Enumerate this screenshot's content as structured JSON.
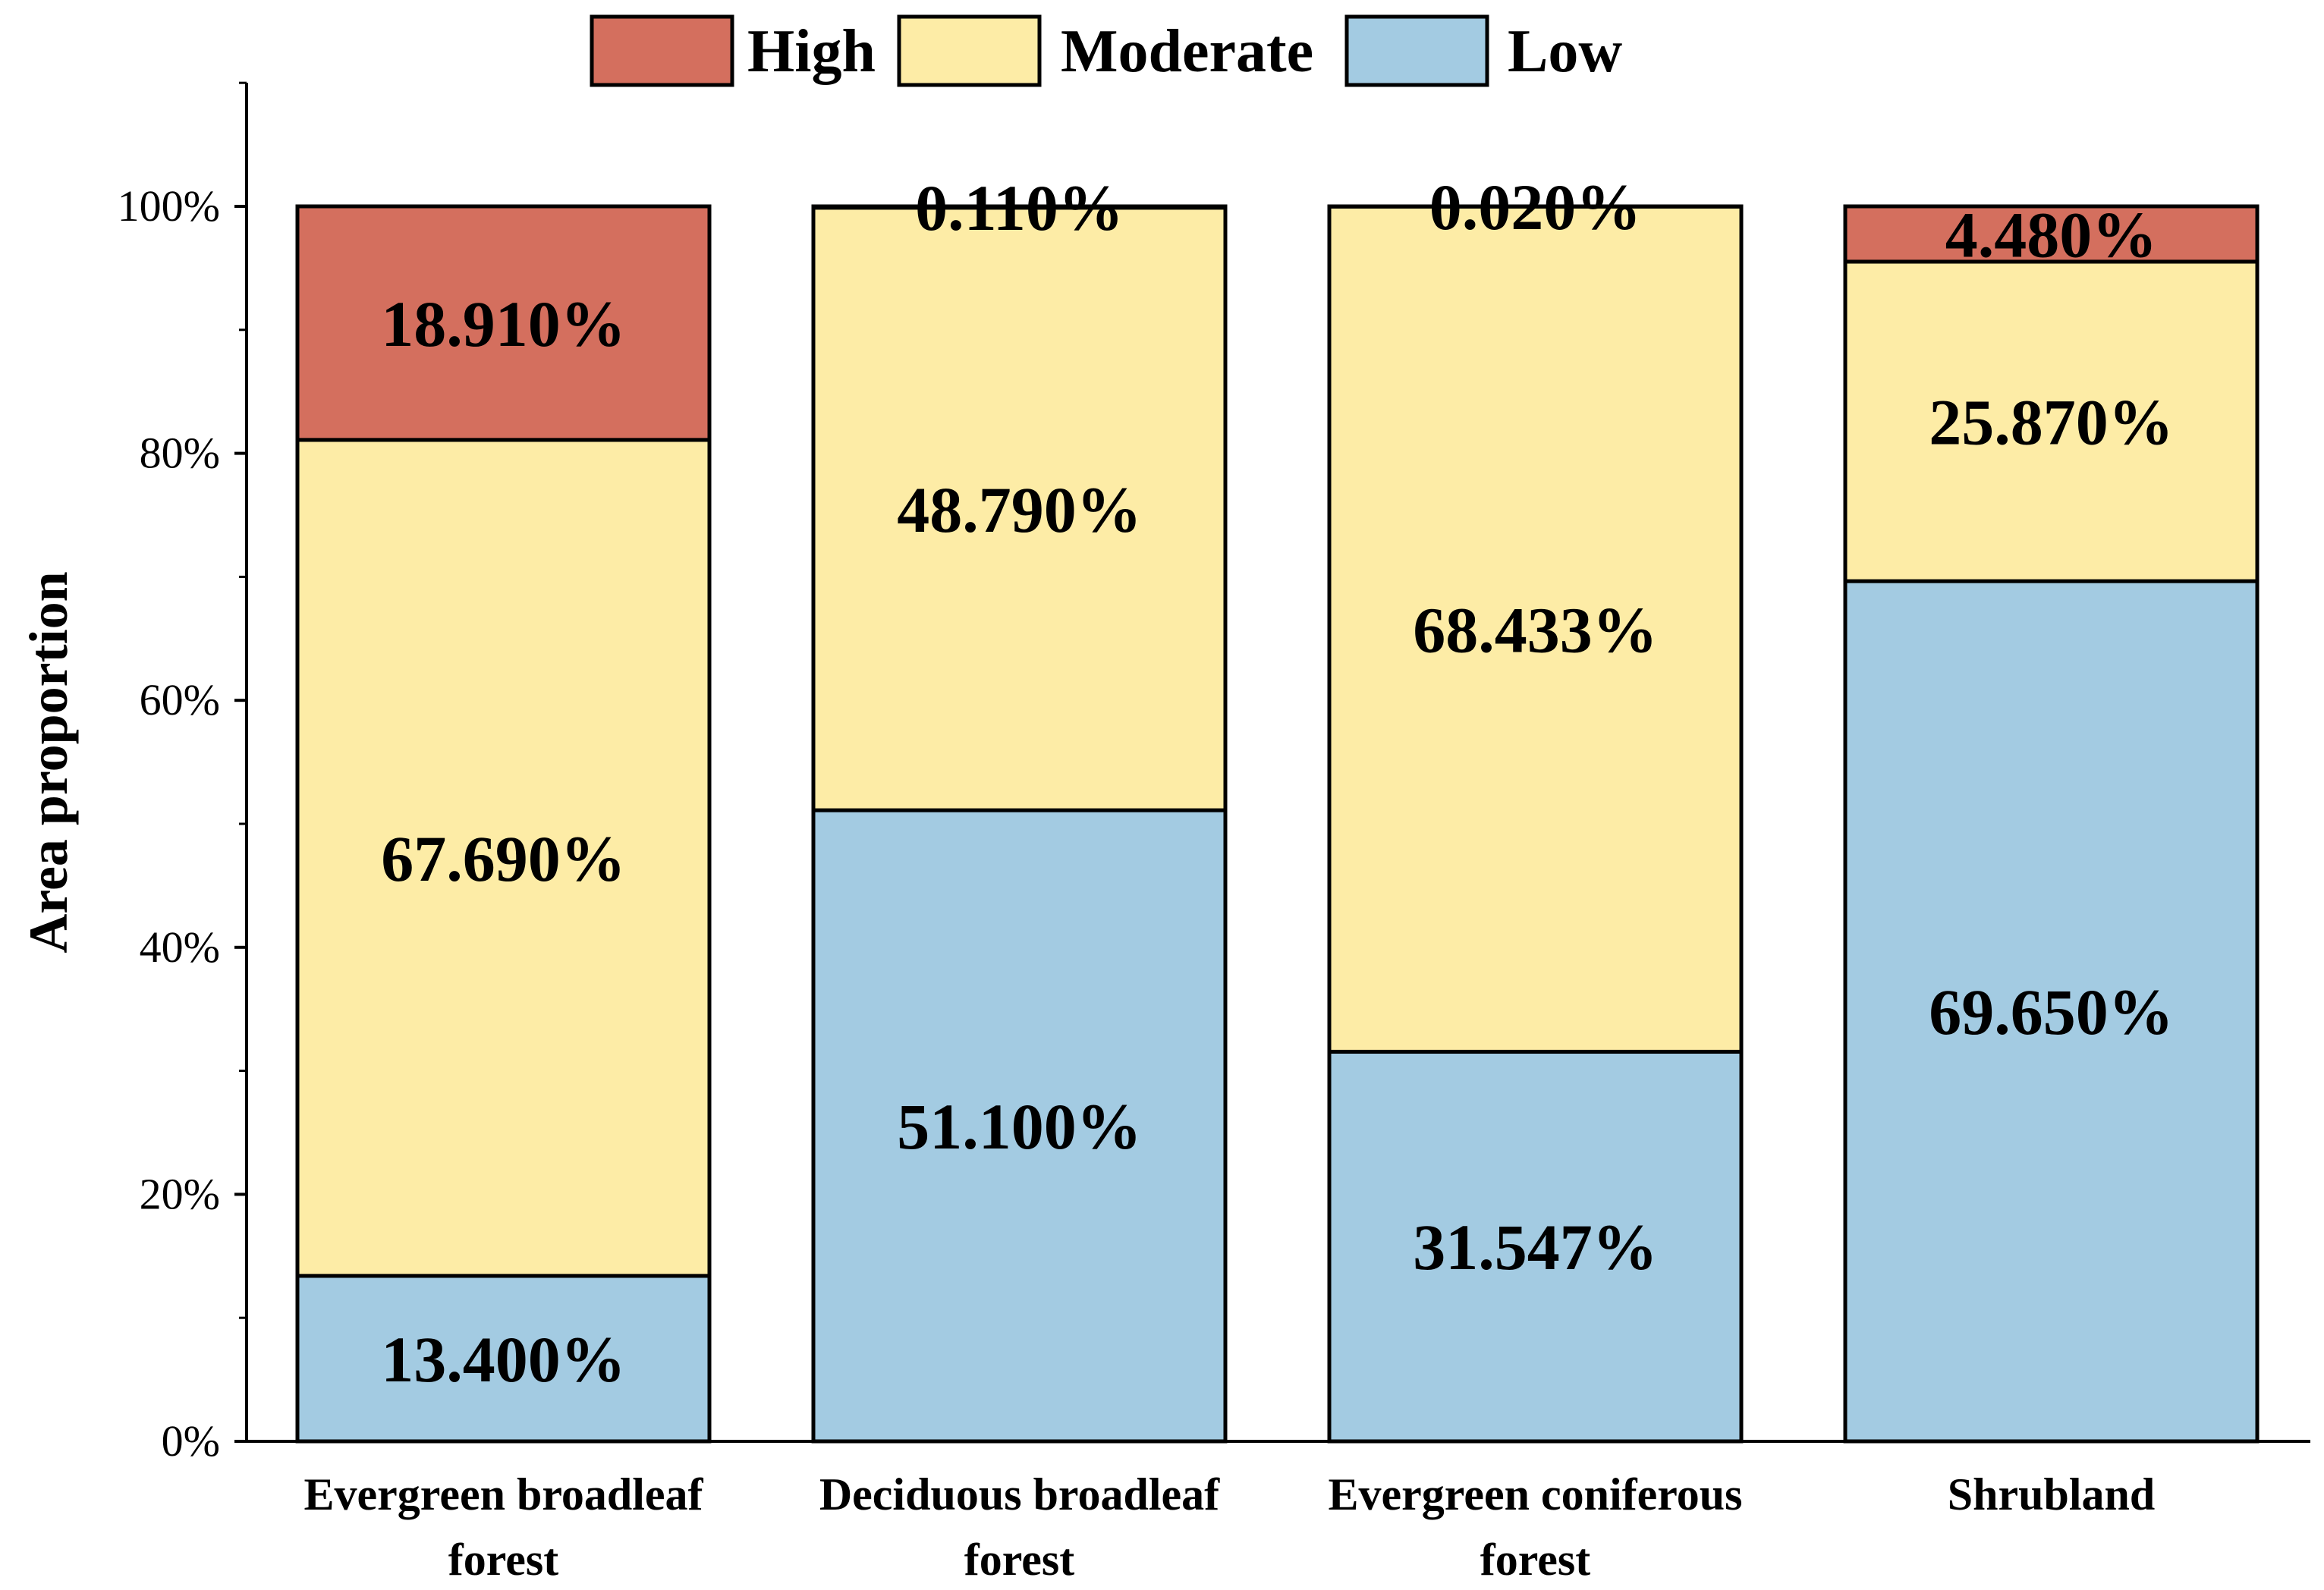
{
  "chart_data": {
    "type": "bar",
    "stacked": true,
    "categories": [
      [
        "Evergreen broadleaf",
        "forest"
      ],
      [
        "Deciduous broadleaf",
        "forest"
      ],
      [
        "Evergreen coniferous",
        "forest"
      ],
      [
        "Shrubland"
      ]
    ],
    "series": [
      {
        "name": "Low",
        "color": "#a3cbe2",
        "values": [
          13.4,
          51.1,
          31.547,
          69.65
        ],
        "labels": [
          "13.400%",
          "51.100%",
          "31.547%",
          "69.650%"
        ]
      },
      {
        "name": "Moderate",
        "color": "#fdeca6",
        "values": [
          67.69,
          48.79,
          68.433,
          25.87
        ],
        "labels": [
          "67.690%",
          "48.790%",
          "68.433%",
          "25.870%"
        ]
      },
      {
        "name": "High",
        "color": "#d46f5e",
        "values": [
          18.91,
          0.11,
          0.02,
          4.48
        ],
        "labels": [
          "18.910%",
          "0.110%",
          "0.020%",
          "4.480%"
        ]
      }
    ],
    "legend_order": [
      "High",
      "Moderate",
      "Low"
    ],
    "legend_position": "top-center",
    "ylabel": "Area proportion",
    "xlabel": "",
    "ylim": [
      0,
      110
    ],
    "yticks": [
      0,
      20,
      40,
      60,
      80,
      100
    ],
    "ytick_labels": [
      "0%",
      "20%",
      "40%",
      "60%",
      "80%",
      "100%"
    ],
    "grid": false
  }
}
